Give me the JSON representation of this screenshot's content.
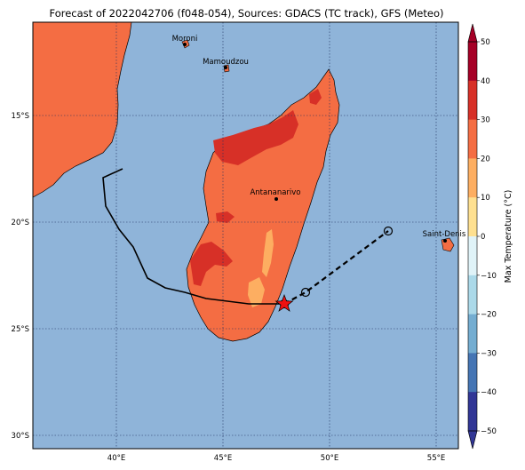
{
  "title": "Forecast of 2022042706 (f048-054), Sources: GDACS (TC track), GFS (Meteo)",
  "map": {
    "ocean_color": "#8fb4d9",
    "land_color": "#f46d43",
    "hot_color": "#d73027",
    "warm_color": "#fdae61",
    "lat_labels": [
      "15°S",
      "20°S",
      "25°S",
      "30°S"
    ],
    "lon_labels": [
      "40°E",
      "45°E",
      "50°E",
      "55°E"
    ],
    "cities": [
      {
        "name": "Moroni"
      },
      {
        "name": "Mamoudzou"
      },
      {
        "name": "Antananarivo"
      },
      {
        "name": "Saint-Denis"
      }
    ],
    "track_markers": [
      "open-circle-icon",
      "open-circle-icon",
      "open-circle-icon",
      "red-star-icon"
    ]
  },
  "colorbar": {
    "label": "Max Temperature (°C)",
    "ticks": [
      "50",
      "40",
      "30",
      "20",
      "10",
      "0",
      "−10",
      "−20",
      "−30",
      "−40",
      "−50"
    ],
    "colors": [
      "#a50026",
      "#d73027",
      "#f46d43",
      "#fdae61",
      "#fee090",
      "#ffffbf",
      "#e0f3f8",
      "#abd9e9",
      "#74add1",
      "#4575b4",
      "#313695"
    ]
  }
}
